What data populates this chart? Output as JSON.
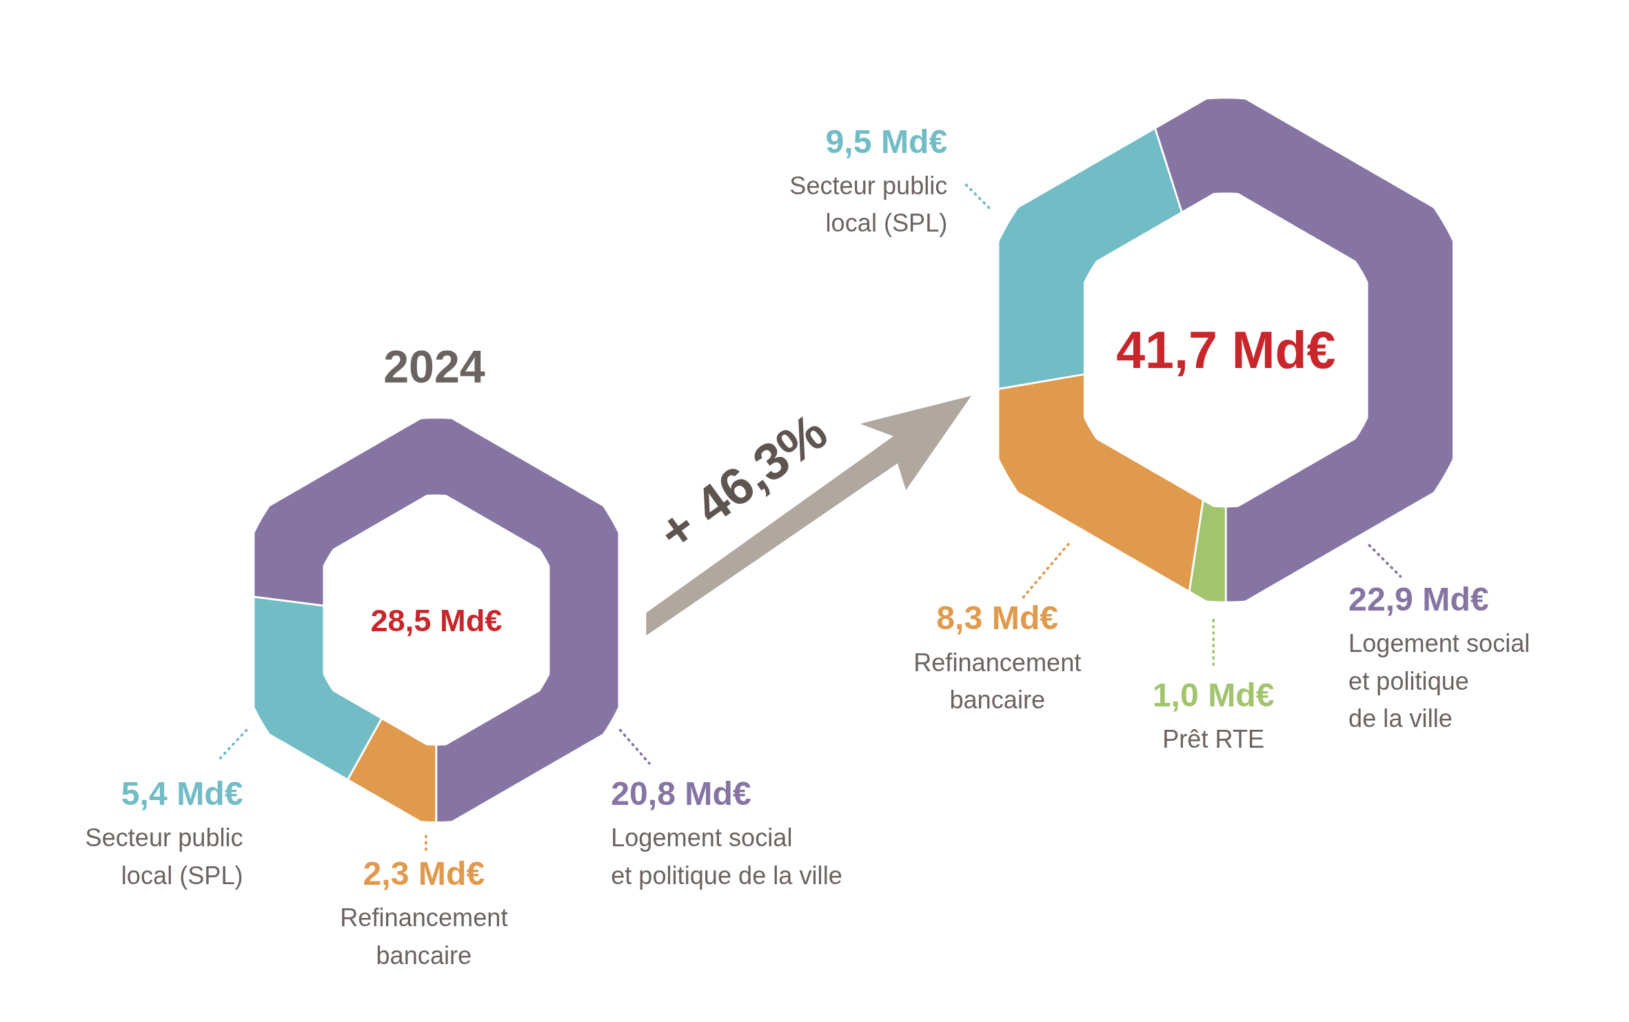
{
  "chart_data": [
    {
      "type": "donut",
      "title": "2024",
      "categories": [
        "Refinancement bancaire",
        "Secteur public local (SPL)",
        "Logement social et politique de la ville"
      ],
      "values": [
        2.3,
        5.4,
        20.8
      ],
      "colors": [
        "#e09a4e",
        "#72bcc6",
        "#8675a3"
      ],
      "value_labels": [
        "2,3 Md€",
        "5,4 Md€",
        "20,8 Md€"
      ],
      "annotations": [
        "28,5 Md€"
      ]
    },
    {
      "type": "donut",
      "categories": [
        "Prêt RTE",
        "Refinancement bancaire",
        "Secteur public local (SPL)",
        "Logement social et politique de la ville"
      ],
      "values": [
        1.0,
        8.3,
        9.5,
        22.9
      ],
      "colors": [
        "#a3c46f",
        "#e09a4e",
        "#72bcc6",
        "#8675a3"
      ],
      "value_labels": [
        "1,0 Md€",
        "8,3 Md€",
        "9,5 Md€",
        "22,9 Md€"
      ],
      "annotations": [
        "41,7 Md€",
        "+ 46,3%"
      ]
    }
  ]
}
